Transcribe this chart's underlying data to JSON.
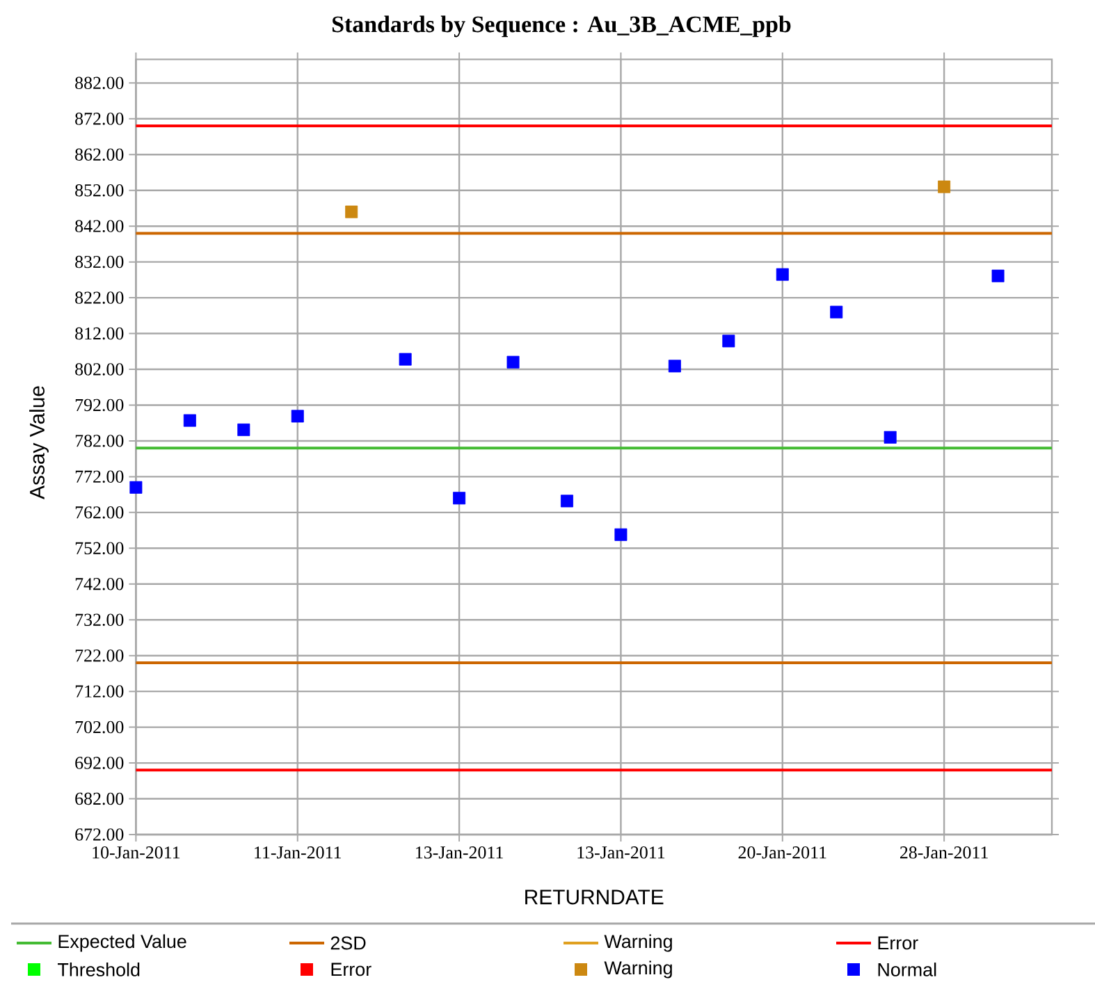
{
  "chart_data": {
    "type": "scatter",
    "title": "Standards by Sequence : Au_3B_ACME_ppb",
    "xlabel": "RETURNDATE",
    "ylabel": "Assay Value",
    "categories": [
      "10-Jan-2011",
      null,
      null,
      "11-Jan-2011",
      null,
      null,
      "13-Jan-2011",
      null,
      null,
      "13-Jan-2011",
      null,
      null,
      "20-Jan-2011",
      null,
      null,
      "28-Jan-2011",
      null
    ],
    "series": [
      {
        "name": "Threshold",
        "color": "#00ff00",
        "values": [
          null,
          null,
          null,
          null,
          null,
          null,
          null,
          null,
          null,
          null,
          null,
          null,
          null,
          null,
          null,
          null,
          null
        ]
      },
      {
        "name": "Error",
        "color": "#ff0000",
        "values": [
          null,
          null,
          null,
          null,
          null,
          null,
          null,
          null,
          null,
          null,
          null,
          null,
          null,
          null,
          null,
          null,
          null
        ]
      },
      {
        "name": "Warning",
        "color": "#cc8811",
        "values": [
          null,
          null,
          null,
          null,
          846,
          null,
          null,
          null,
          null,
          null,
          null,
          null,
          null,
          null,
          null,
          853,
          null
        ]
      },
      {
        "name": "Normal",
        "color": "#0000ff",
        "values": [
          769,
          787.7,
          785.1,
          788.9,
          null,
          804.8,
          766,
          804,
          765.2,
          755.8,
          802.9,
          809.9,
          828.5,
          818,
          783,
          null,
          828.1
        ]
      }
    ],
    "ref_lines": [
      {
        "axis": "y",
        "value": 780,
        "label": "Expected Value",
        "color": "#44bb33"
      },
      {
        "axis": "y",
        "value": 840,
        "label": "2SD",
        "color": "#cc6600"
      },
      {
        "axis": "y",
        "value": 720,
        "label": null,
        "color": "#cc6600"
      },
      {
        "axis": "y",
        "value": null,
        "label": "Warning",
        "color": "#e0a020"
      },
      {
        "axis": "y",
        "value": 870,
        "label": "Error",
        "color": "#ff0000"
      },
      {
        "axis": "y",
        "value": 690,
        "label": null,
        "color": "#ff0000"
      }
    ],
    "ylim": [
      672,
      888.6
    ],
    "yticks": [
      {
        "value": 672,
        "label": "672.00"
      },
      {
        "value": 682,
        "label": "682.00"
      },
      {
        "value": 692,
        "label": "692.00"
      },
      {
        "value": 702,
        "label": "702.00"
      },
      {
        "value": 712,
        "label": "712.00"
      },
      {
        "value": 722,
        "label": "722.00"
      },
      {
        "value": 732,
        "label": "732.00"
      },
      {
        "value": 742,
        "label": "742.00"
      },
      {
        "value": 752,
        "label": "752.00"
      },
      {
        "value": 762,
        "label": "762.00"
      },
      {
        "value": 772,
        "label": "772.00"
      },
      {
        "value": 782,
        "label": "782.00"
      },
      {
        "value": 792,
        "label": "792.00"
      },
      {
        "value": 802,
        "label": "802.00"
      },
      {
        "value": 812,
        "label": "812.00"
      },
      {
        "value": 822,
        "label": "822.00"
      },
      {
        "value": 832,
        "label": "832.00"
      },
      {
        "value": 842,
        "label": "842.00"
      },
      {
        "value": 852,
        "label": "852.00"
      },
      {
        "value": 862,
        "label": "862.00"
      },
      {
        "value": 872,
        "label": "872.00"
      },
      {
        "value": 882,
        "label": "882.00"
      }
    ],
    "grid": true,
    "legend": "bottom",
    "marker": "square"
  }
}
